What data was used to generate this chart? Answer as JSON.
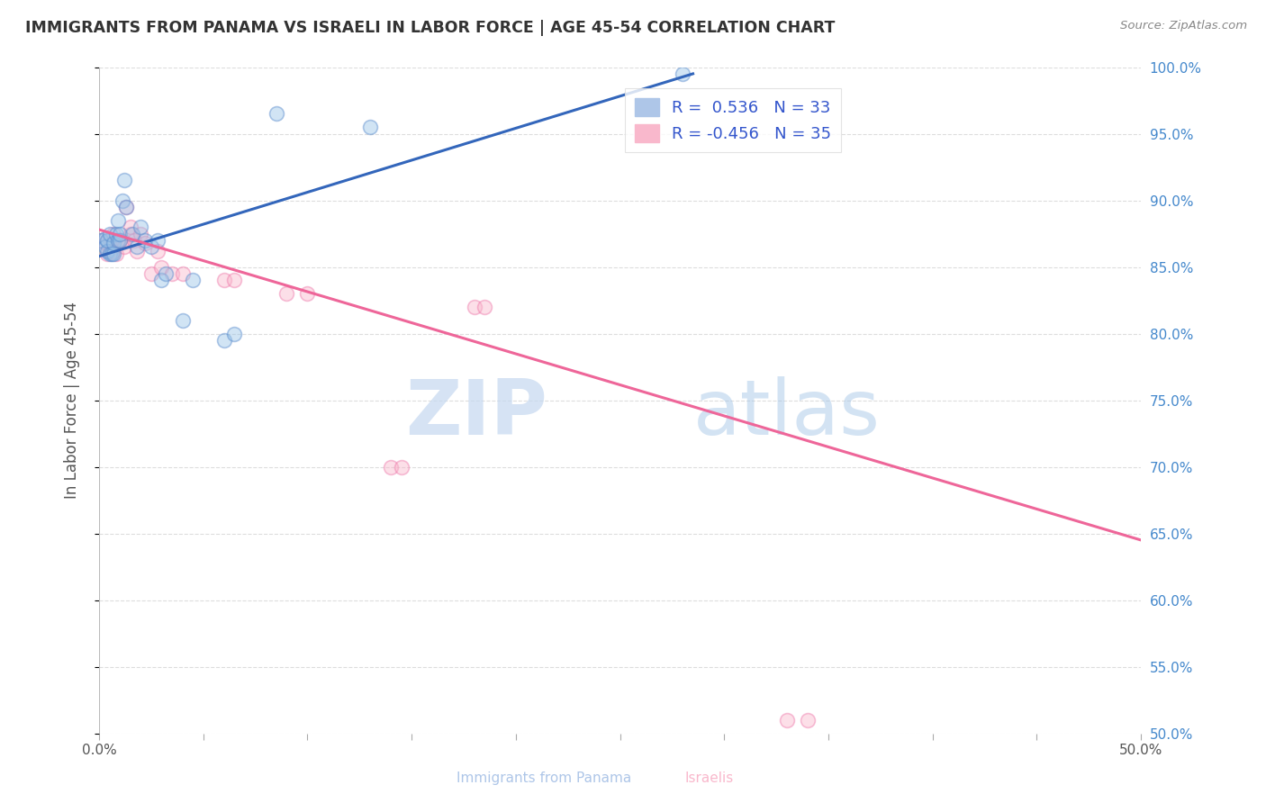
{
  "title": "IMMIGRANTS FROM PANAMA VS ISRAELI IN LABOR FORCE | AGE 45-54 CORRELATION CHART",
  "source": "Source: ZipAtlas.com",
  "ylabel": "In Labor Force | Age 45-54",
  "xlim": [
    0.0,
    0.5
  ],
  "ylim": [
    0.5,
    1.0
  ],
  "xticks": [
    0.0,
    0.05,
    0.1,
    0.15,
    0.2,
    0.25,
    0.3,
    0.35,
    0.4,
    0.45,
    0.5
  ],
  "yticks": [
    0.5,
    0.55,
    0.6,
    0.65,
    0.7,
    0.75,
    0.8,
    0.85,
    0.9,
    0.95,
    1.0
  ],
  "ytick_labels_right": [
    "50.0%",
    "55.0%",
    "60.0%",
    "65.0%",
    "70.0%",
    "75.0%",
    "80.0%",
    "85.0%",
    "90.0%",
    "95.0%",
    "100.0%"
  ],
  "watermark_zip": "ZIP",
  "watermark_atlas": "atlas",
  "blue_scatter_x": [
    0.001,
    0.003,
    0.003,
    0.004,
    0.004,
    0.005,
    0.005,
    0.006,
    0.007,
    0.007,
    0.008,
    0.009,
    0.009,
    0.01,
    0.01,
    0.011,
    0.012,
    0.013,
    0.016,
    0.018,
    0.02,
    0.022,
    0.025,
    0.028,
    0.03,
    0.032,
    0.04,
    0.045,
    0.06,
    0.065,
    0.085,
    0.13,
    0.28
  ],
  "blue_scatter_y": [
    0.87,
    0.871,
    0.865,
    0.862,
    0.87,
    0.86,
    0.875,
    0.86,
    0.86,
    0.868,
    0.875,
    0.87,
    0.885,
    0.87,
    0.875,
    0.9,
    0.915,
    0.895,
    0.875,
    0.865,
    0.88,
    0.87,
    0.865,
    0.87,
    0.84,
    0.845,
    0.81,
    0.84,
    0.795,
    0.8,
    0.965,
    0.955,
    0.995
  ],
  "pink_scatter_x": [
    0.001,
    0.003,
    0.004,
    0.005,
    0.005,
    0.006,
    0.007,
    0.007,
    0.008,
    0.009,
    0.01,
    0.011,
    0.012,
    0.013,
    0.015,
    0.015,
    0.017,
    0.018,
    0.02,
    0.022,
    0.025,
    0.028,
    0.03,
    0.035,
    0.04,
    0.06,
    0.065,
    0.09,
    0.1,
    0.14,
    0.145,
    0.18,
    0.185,
    0.33,
    0.34
  ],
  "pink_scatter_y": [
    0.87,
    0.868,
    0.86,
    0.862,
    0.87,
    0.868,
    0.862,
    0.875,
    0.86,
    0.868,
    0.87,
    0.87,
    0.865,
    0.895,
    0.875,
    0.88,
    0.87,
    0.862,
    0.875,
    0.868,
    0.845,
    0.862,
    0.85,
    0.845,
    0.845,
    0.84,
    0.84,
    0.83,
    0.83,
    0.7,
    0.7,
    0.82,
    0.82,
    0.51,
    0.51
  ],
  "blue_line_x": [
    0.0,
    0.285
  ],
  "blue_line_y": [
    0.858,
    0.995
  ],
  "pink_line_x": [
    0.0,
    0.5
  ],
  "pink_line_y": [
    0.878,
    0.645
  ],
  "background_color": "#ffffff",
  "grid_color": "#dddddd",
  "title_color": "#333333",
  "axis_label_color": "#555555",
  "right_tick_color": "#4488cc",
  "blue_color": "#99c4e8",
  "pink_color": "#f9b8cc",
  "blue_edge_color": "#5588cc",
  "pink_edge_color": "#ee77aa",
  "blue_line_color": "#3366bb",
  "pink_line_color": "#ee6699",
  "scatter_size": 130,
  "scatter_alpha": 0.45,
  "scatter_linewidth": 1.2
}
